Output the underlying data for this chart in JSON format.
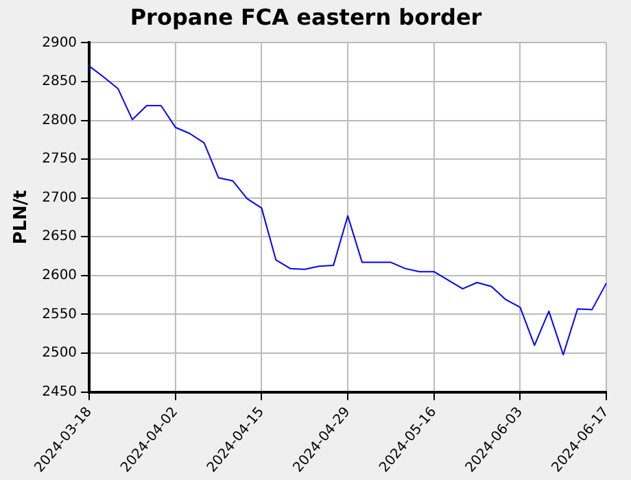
{
  "chart_data": {
    "type": "line",
    "title": "Propane FCA eastern border",
    "ylabel": "PLN/t",
    "categories": [
      "2024-03-18",
      null,
      null,
      null,
      null,
      null,
      "2024-04-02",
      null,
      null,
      null,
      null,
      null,
      "2024-04-15",
      null,
      null,
      null,
      null,
      null,
      "2024-04-29",
      null,
      null,
      null,
      null,
      null,
      "2024-05-16",
      null,
      null,
      null,
      null,
      null,
      "2024-06-03",
      null,
      null,
      null,
      null,
      null,
      "2024-06-17"
    ],
    "series": [
      {
        "color": "#0000ff",
        "values": [
          2870,
          2856,
          2841,
          2801,
          2819,
          2819,
          2791,
          2783,
          2771,
          2726,
          2722,
          2699,
          2687,
          2620,
          2609,
          2608,
          2612,
          2613,
          2677,
          2617,
          2617,
          2617,
          2609,
          2605,
          2605,
          2594,
          2583,
          2591,
          2586,
          2569,
          2559,
          2510,
          2554,
          2498,
          2557,
          2556,
          2590
        ]
      }
    ],
    "ylim": [
      2450,
      2900
    ],
    "yticks": [
      2450,
      2500,
      2550,
      2600,
      2650,
      2700,
      2750,
      2800,
      2850,
      2900
    ],
    "grid": true,
    "legend": false,
    "marker": "none",
    "line_style": "solid"
  }
}
